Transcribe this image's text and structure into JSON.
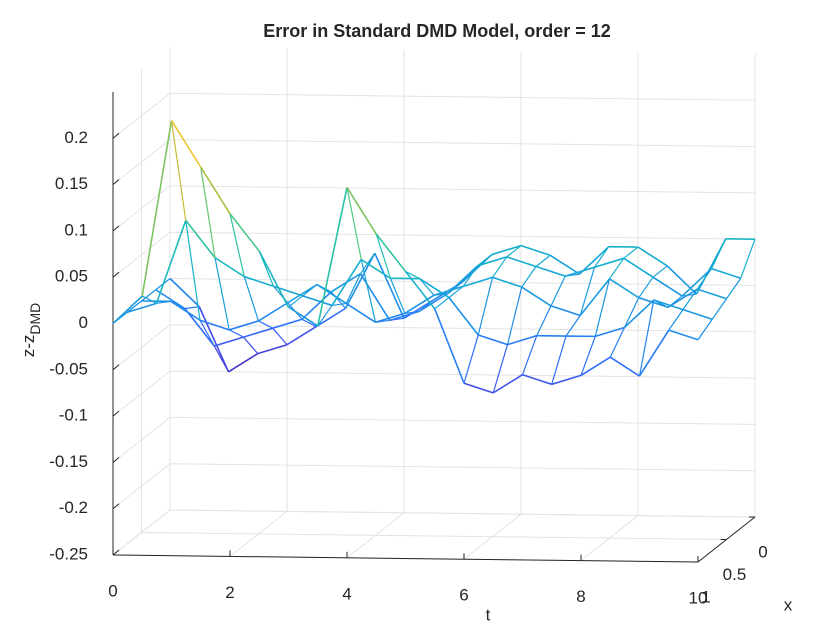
{
  "chart_data": {
    "type": "mesh",
    "title": "Error in Standard DMD Model, order = 12",
    "xlabel": "t",
    "ylabel": "x",
    "zlabel": {
      "text": "z-z",
      "subscript": "DMD"
    },
    "grid": true,
    "t": [
      0,
      0.5,
      1,
      1.5,
      2,
      2.5,
      3,
      3.5,
      4,
      4.5,
      5,
      5.5,
      6,
      6.5,
      7,
      7.5,
      8,
      8.5,
      9,
      9.5,
      10
    ],
    "x": [
      0,
      0.25,
      0.5,
      0.75,
      1
    ],
    "z": [
      [
        0,
        -0.03,
        -0.1,
        -0.08,
        -0.07,
        -0.05,
        -0.03,
        0.03,
        -0.04,
        -0.02,
        0,
        0.03,
        0.04,
        0.03,
        0.01,
        0.04,
        0.04,
        0.02,
        -0.01,
        0.05,
        0.05
      ],
      [
        0,
        -0.02,
        -0.06,
        -0.05,
        -0.04,
        -0.03,
        0,
        0.02,
        -0.03,
        -0.02,
        0,
        0.03,
        0.04,
        0.03,
        0.02,
        0.03,
        0.04,
        0.02,
        0,
        0.03,
        0.02
      ],
      [
        0,
        0,
        -0.02,
        -0.03,
        -0.02,
        0,
        0.02,
        0,
        -0.02,
        -0.01,
        0.01,
        0.02,
        0.03,
        0.02,
        0,
        -0.01,
        0.03,
        0.01,
        0,
        0.02,
        0.01
      ],
      [
        0,
        0.01,
        0.1,
        0.06,
        0.04,
        0.03,
        0.02,
        0.01,
        0.06,
        0.04,
        0.04,
        0.02,
        -0.02,
        -0.03,
        -0.02,
        -0.02,
        -0.02,
        -0.01,
        0.02,
        0.01,
        0
      ],
      [
        0,
        0.03,
        0.22,
        0.17,
        0.12,
        0.08,
        0.02,
        0,
        0.15,
        0.1,
        0.06,
        0.02,
        -0.06,
        -0.07,
        -0.05,
        -0.06,
        -0.05,
        -0.03,
        -0.05,
        0,
        -0.01
      ]
    ],
    "tlim": [
      0,
      10
    ],
    "xlim": [
      0,
      1
    ],
    "zlim": [
      -0.25,
      0.25
    ],
    "tticks": [
      0,
      2,
      4,
      6,
      8,
      10
    ],
    "xticks": [
      0,
      0.5,
      1
    ],
    "zticks": [
      0.2,
      0.15,
      0.1,
      0.05,
      0,
      -0.05,
      -0.1,
      -0.15,
      -0.2,
      -0.25
    ],
    "clim": [
      -0.11,
      0.25
    ],
    "colormap": [
      "#3e26a8",
      "#4743e0",
      "#2f6ffd",
      "#1d90e8",
      "#14aecf",
      "#20c0ae",
      "#52c882",
      "#a3c141",
      "#e4b933",
      "#fbd227",
      "#f9fb0e"
    ]
  }
}
